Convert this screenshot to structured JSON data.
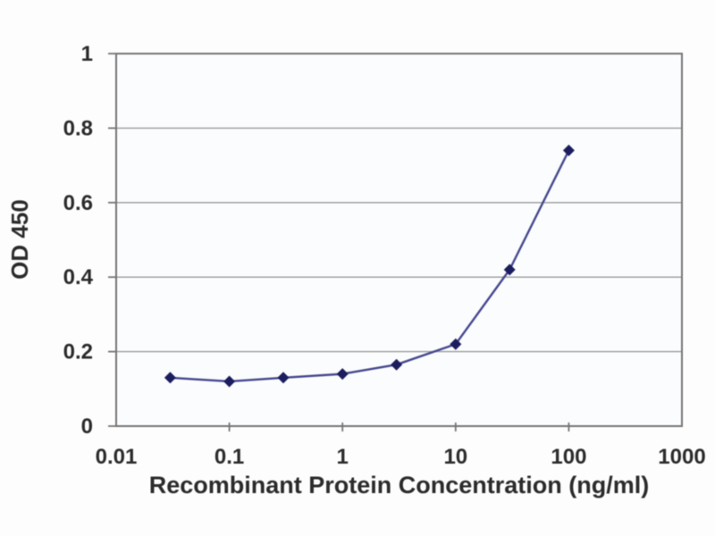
{
  "page": {
    "background": "#fdfdfd"
  },
  "chart_data": {
    "type": "line",
    "title": "",
    "xlabel": "Recombinant Protein Concentration (ng/ml)",
    "ylabel": "OD 450",
    "x_scale": "log",
    "xlim": [
      0.01,
      1000
    ],
    "ylim": [
      0,
      1
    ],
    "grid": true,
    "legend": "none",
    "x_ticks": [
      {
        "value": 0.01,
        "label": "0.01"
      },
      {
        "value": 0.1,
        "label": "0.1"
      },
      {
        "value": 1,
        "label": "1"
      },
      {
        "value": 10,
        "label": "10"
      },
      {
        "value": 100,
        "label": "100"
      },
      {
        "value": 1000,
        "label": "1000"
      }
    ],
    "y_ticks": [
      {
        "value": 1,
        "label": "1"
      },
      {
        "value": 0.8,
        "label": "0.8"
      },
      {
        "value": 0.6,
        "label": "0.6"
      },
      {
        "value": 0.4,
        "label": "0.4"
      },
      {
        "value": 0.2,
        "label": "0.2"
      },
      {
        "value": 0,
        "label": "0"
      }
    ],
    "series": [
      {
        "name": "OD 450",
        "marker": "diamond",
        "x": [
          0.03,
          0.1,
          0.3,
          1,
          3,
          10,
          30,
          100
        ],
        "y": [
          0.13,
          0.12,
          0.13,
          0.14,
          0.165,
          0.22,
          0.42,
          0.74
        ]
      }
    ],
    "colors": {
      "line": "#45488f",
      "marker": "#1b1d5e",
      "frame": "#757575",
      "gridline": "#9b9b9b",
      "tick_text": "#2b2b2b",
      "plot_background": "#fbfcfd"
    }
  }
}
